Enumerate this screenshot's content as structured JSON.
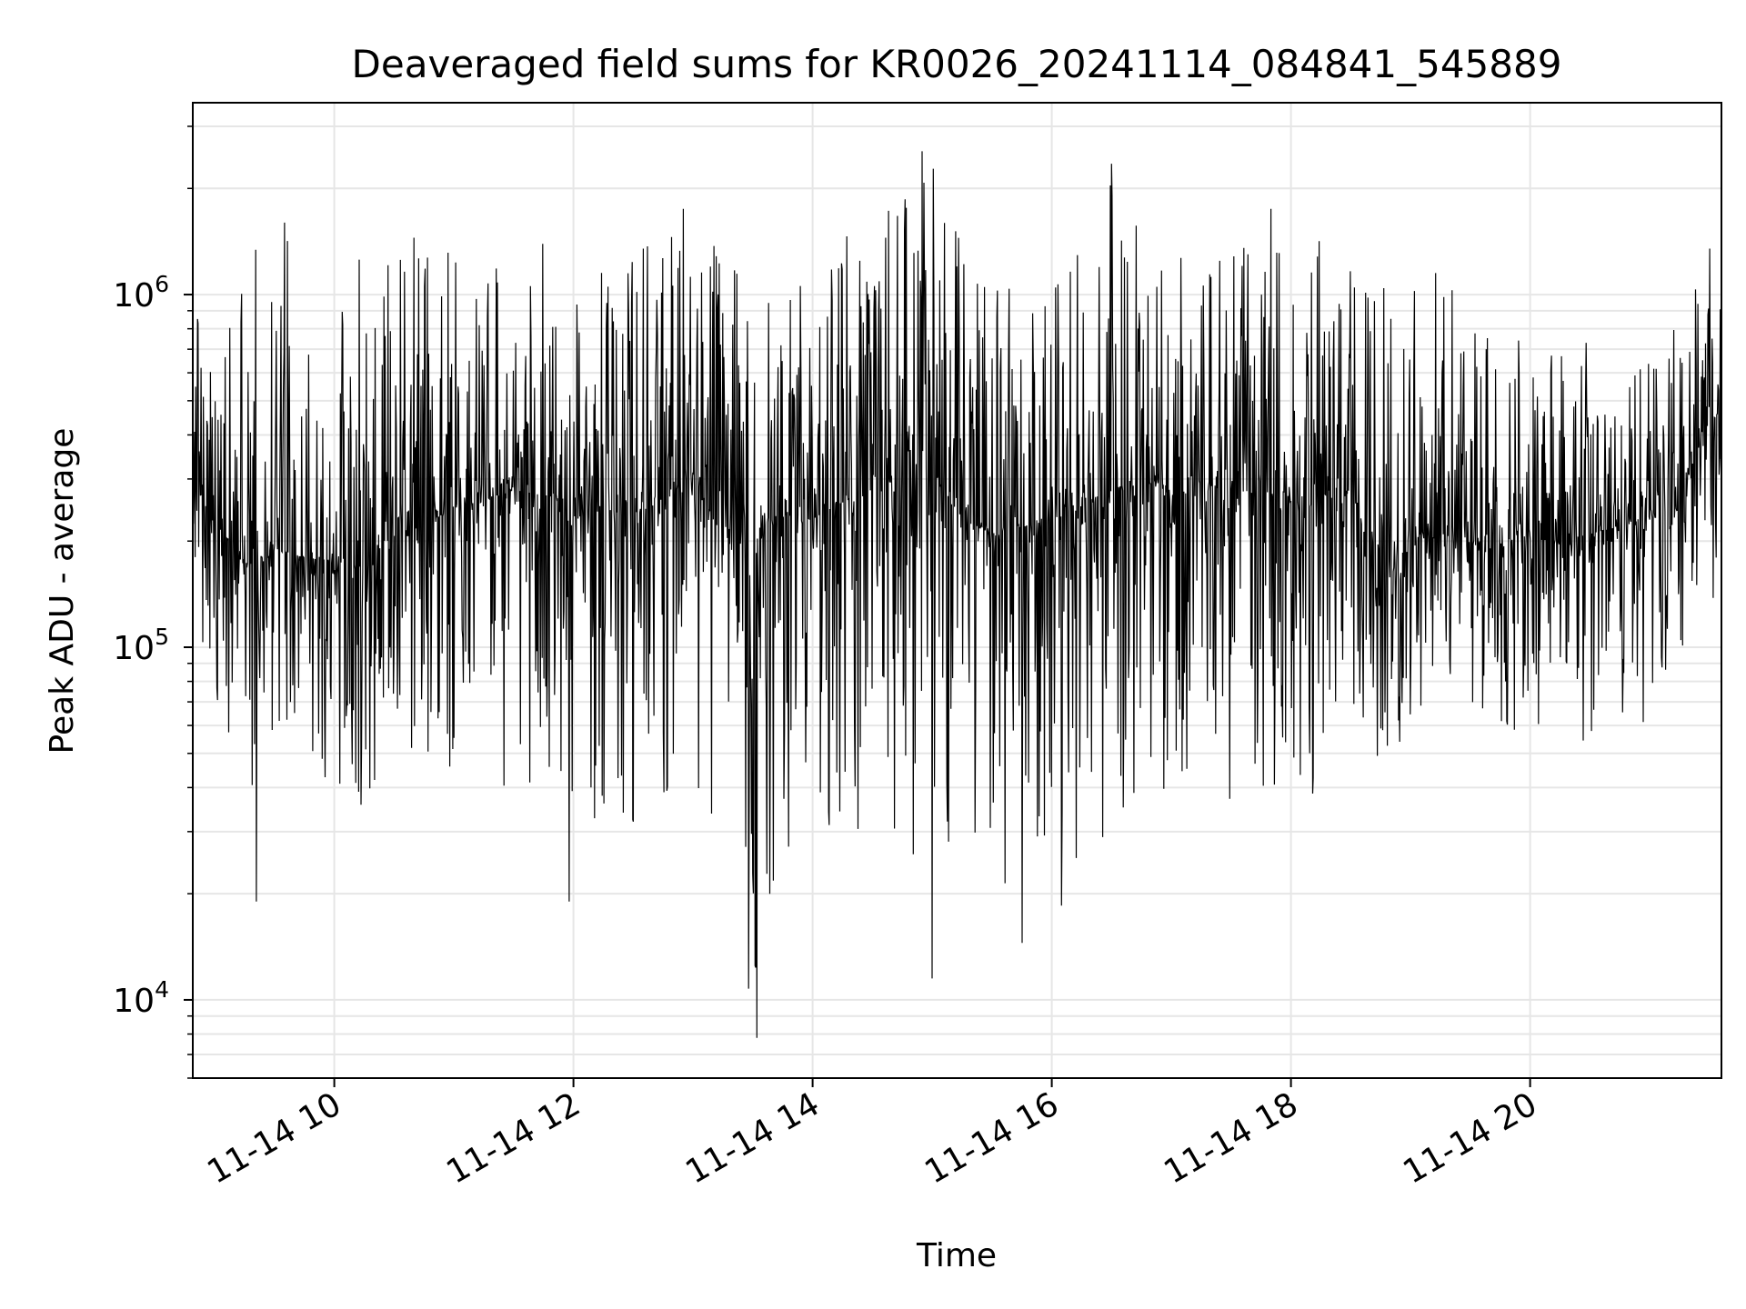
{
  "chart_data": {
    "type": "line",
    "title": "Deaveraged field sums for KR0026_20241114_084841_545889",
    "xlabel": "Time",
    "ylabel": "Peak ADU - average",
    "yscale": "log",
    "ylim": [
      6000,
      3500000
    ],
    "xlim": [
      "2024-11-14 08:49",
      "2024-11-14 21:36"
    ],
    "grid": true,
    "legend": "none",
    "line_color": "#000000",
    "x_ticks": [
      {
        "value": "2024-11-14 10:00",
        "label": "11-14 10"
      },
      {
        "value": "2024-11-14 12:00",
        "label": "11-14 12"
      },
      {
        "value": "2024-11-14 14:00",
        "label": "11-14 14"
      },
      {
        "value": "2024-11-14 16:00",
        "label": "11-14 16"
      },
      {
        "value": "2024-11-14 18:00",
        "label": "11-14 18"
      },
      {
        "value": "2024-11-14 20:00",
        "label": "11-14 20"
      }
    ],
    "y_ticks": [
      {
        "value": 10000,
        "base": "10",
        "exp": "4"
      },
      {
        "value": 100000,
        "base": "10",
        "exp": "5"
      },
      {
        "value": 1000000,
        "base": "10",
        "exp": "6"
      }
    ],
    "series": [
      {
        "x": [
          "2024-11-14 08:49",
          "2024-11-14 09:00",
          "2024-11-14 09:15",
          "2024-11-14 09:30",
          "2024-11-14 09:45",
          "2024-11-14 10:00",
          "2024-11-14 10:15",
          "2024-11-14 10:30",
          "2024-11-14 10:45",
          "2024-11-14 11:00",
          "2024-11-14 11:15",
          "2024-11-14 11:30",
          "2024-11-14 11:45",
          "2024-11-14 12:00",
          "2024-11-14 12:15",
          "2024-11-14 12:30",
          "2024-11-14 12:45",
          "2024-11-14 13:00",
          "2024-11-14 13:15",
          "2024-11-14 13:30",
          "2024-11-14 13:45",
          "2024-11-14 14:00",
          "2024-11-14 14:15",
          "2024-11-14 14:30",
          "2024-11-14 14:45",
          "2024-11-14 15:00",
          "2024-11-14 15:15",
          "2024-11-14 15:30",
          "2024-11-14 15:45",
          "2024-11-14 16:00",
          "2024-11-14 16:15",
          "2024-11-14 16:30",
          "2024-11-14 16:45",
          "2024-11-14 17:00",
          "2024-11-14 17:15",
          "2024-11-14 17:30",
          "2024-11-14 17:45",
          "2024-11-14 18:00",
          "2024-11-14 18:15",
          "2024-11-14 18:30",
          "2024-11-14 18:45",
          "2024-11-14 19:00",
          "2024-11-14 19:15",
          "2024-11-14 19:30",
          "2024-11-14 19:45",
          "2024-11-14 20:00",
          "2024-11-14 20:15",
          "2024-11-14 20:30",
          "2024-11-14 20:45",
          "2024-11-14 21:00",
          "2024-11-14 21:15",
          "2024-11-14 21:30",
          "2024-11-14 21:36"
        ],
        "center": [
          300000,
          230000,
          170000,
          190000,
          180000,
          175000,
          170000,
          210000,
          220000,
          250000,
          260000,
          280000,
          270000,
          260000,
          250000,
          240000,
          270000,
          310000,
          200000,
          210000,
          240000,
          230000,
          260000,
          280000,
          330000,
          320000,
          230000,
          210000,
          220000,
          230000,
          250000,
          280000,
          300000,
          270000,
          290000,
          280000,
          270000,
          260000,
          270000,
          280000,
          150000,
          200000,
          210000,
          200000,
          190000,
          210000,
          200000,
          210000,
          220000,
          230000,
          250000,
          480000,
          450000
        ],
        "low": [
          140000,
          60000,
          30000,
          38000,
          45000,
          40000,
          30000,
          48000,
          50000,
          40000,
          42000,
          38000,
          35000,
          25000,
          36000,
          30000,
          33000,
          40000,
          28000,
          8000,
          22000,
          28000,
          30000,
          30000,
          28000,
          12000,
          20000,
          24000,
          15000,
          25000,
          19000,
          30000,
          28000,
          33000,
          38000,
          35000,
          30000,
          40000,
          35000,
          60000,
          48000,
          52000,
          60000,
          65000,
          60000,
          55000,
          60000,
          50000,
          65000,
          60000,
          68000,
          150000,
          110000
        ],
        "high": [
          1050000,
          650000,
          1600000,
          1500000,
          1400000,
          1000000,
          1400000,
          1250000,
          1300000,
          1500000,
          1200000,
          1300000,
          1400000,
          1000000,
          1200000,
          1250000,
          1600000,
          1700000,
          1500000,
          1100000,
          1050000,
          1300000,
          1600000,
          1500000,
          2500000,
          2700000,
          1400000,
          1200000,
          1000000,
          1400000,
          1550000,
          2300000,
          1500000,
          1300000,
          1400000,
          1650000,
          1500000,
          1700000,
          1500000,
          1300000,
          1200000,
          1200000,
          1150000,
          900000,
          800000,
          800000,
          800000,
          750000,
          700000,
          650000,
          1050000,
          1300000,
          1350000
        ],
        "spikes_high": [
          {
            "x": "2024-11-14 09:35",
            "y": 1600000
          },
          {
            "x": "2024-11-14 10:40",
            "y": 1450000
          },
          {
            "x": "2024-11-14 12:55",
            "y": 1750000
          },
          {
            "x": "2024-11-14 14:55",
            "y": 2550000
          },
          {
            "x": "2024-11-14 15:00",
            "y": 2750000
          },
          {
            "x": "2024-11-14 16:30",
            "y": 2350000
          },
          {
            "x": "2024-11-14 17:50",
            "y": 1750000
          },
          {
            "x": "2024-11-14 21:30",
            "y": 1350000
          }
        ],
        "spikes_low": [
          {
            "x": "2024-11-14 09:21",
            "y": 19000
          },
          {
            "x": "2024-11-14 11:58",
            "y": 19000
          },
          {
            "x": "2024-11-14 13:31",
            "y": 12500
          },
          {
            "x": "2024-11-14 13:32",
            "y": 7800
          },
          {
            "x": "2024-11-14 15:00",
            "y": 11500
          },
          {
            "x": "2024-11-14 15:45",
            "y": 14500
          },
          {
            "x": "2024-11-14 16:05",
            "y": 18500
          }
        ]
      }
    ]
  }
}
